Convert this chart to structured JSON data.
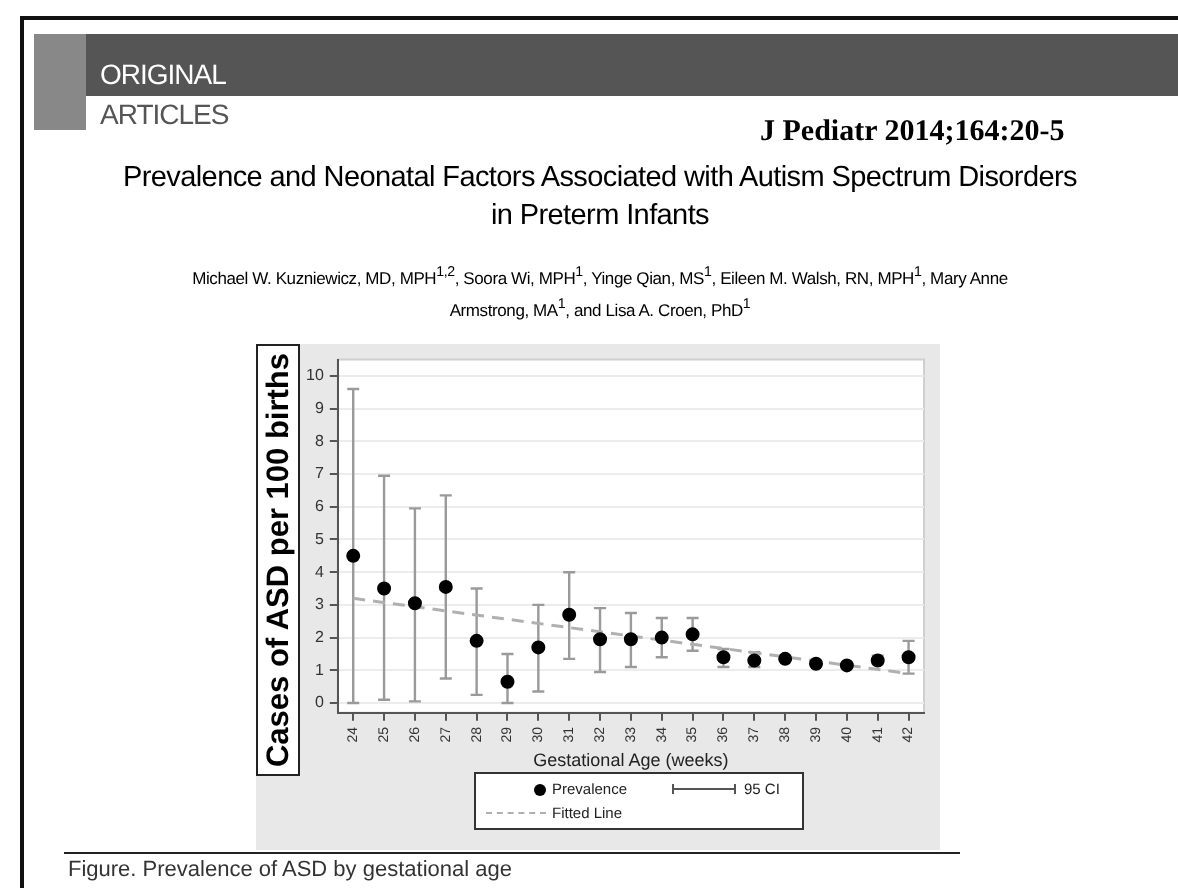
{
  "chart_data": {
    "type": "scatter",
    "title": "Prevalence and Neonatal Factors Associated with Autism Spectrum Disorders in Preterm Infants",
    "subtitle": "Michael W. Kuzniewicz, MD, MPH$^{1,2}$, Soora Wi, MPH$^{1}$, Yinge Qian, MS$^{1}$, Eileen M. Walsh, RN, MPH$^{1}$, Mary Anne Armstrong, MA$^{1}$, and Lisa A. Croen, PhD$^{1}$",
    "xlabel": "Gestational Age (weeks)",
    "ylabel": "Cases of ASD per 100 births",
    "annotations": [
      "ORIGINAL",
      "ARTICLES",
      "J Pediatr 2014;164:20-5",
      "95 CI",
      "Figure. Prevalence of ASD by gestational age"
    ],
    "x": [
      24,
      25,
      26,
      27,
      28,
      29,
      30,
      31,
      32,
      33,
      34,
      35,
      36,
      37,
      38,
      39,
      40,
      41,
      42
    ],
    "xlim": [
      23.5,
      42.5
    ],
    "xticks": [
      24,
      25,
      26,
      27,
      28,
      29,
      30,
      31,
      32,
      33,
      34,
      35,
      36,
      37,
      38,
      39,
      40,
      41,
      42
    ],
    "ylim": [
      -0.3,
      10.5
    ],
    "yticks": [
      0,
      1,
      2,
      3,
      4,
      5,
      6,
      7,
      8,
      9,
      10
    ],
    "grid": "y",
    "legend": "bottom",
    "series": [
      {
        "name": "Prevalence",
        "marker": "circle",
        "color": "#000000",
        "values": [
          4.5,
          3.5,
          3.05,
          3.55,
          1.9,
          0.65,
          1.7,
          2.7,
          1.95,
          1.95,
          2.0,
          2.1,
          1.4,
          1.3,
          1.35,
          1.2,
          1.15,
          1.3,
          1.4
        ],
        "errors": [
          [
            0,
            9.6
          ],
          [
            0.1,
            6.95
          ],
          [
            0.05,
            5.95
          ],
          [
            0.75,
            6.35
          ],
          [
            0.25,
            3.5
          ],
          [
            0,
            1.5
          ],
          [
            0.35,
            3.0
          ],
          [
            1.35,
            4.0
          ],
          [
            0.95,
            2.9
          ],
          [
            1.1,
            2.75
          ],
          [
            1.4,
            2.6
          ],
          [
            1.6,
            2.6
          ],
          [
            1.1,
            1.65
          ],
          [
            1.1,
            1.55
          ],
          [
            1.3,
            1.45
          ],
          [
            1.12,
            1.25
          ],
          [
            1.1,
            1.23
          ],
          [
            1.2,
            1.45
          ],
          [
            0.9,
            1.9
          ]
        ]
      },
      {
        "name": "Fitted Line",
        "type": "line",
        "marker": "none",
        "line_style": "dashed",
        "color": "#b0b0b0",
        "x": [
          24,
          42
        ],
        "values": [
          3.2,
          0.9
        ]
      }
    ]
  }
}
